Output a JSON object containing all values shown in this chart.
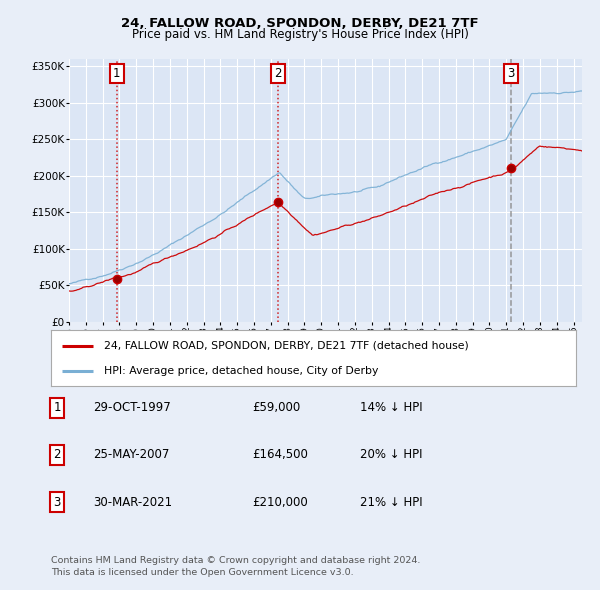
{
  "title1": "24, FALLOW ROAD, SPONDON, DERBY, DE21 7TF",
  "title2": "Price paid vs. HM Land Registry's House Price Index (HPI)",
  "red_label": "24, FALLOW ROAD, SPONDON, DERBY, DE21 7TF (detached house)",
  "blue_label": "HPI: Average price, detached house, City of Derby",
  "sale1_date": "29-OCT-1997",
  "sale1_price": 59000,
  "sale1_hpi": "14% ↓ HPI",
  "sale2_date": "25-MAY-2007",
  "sale2_price": 164500,
  "sale2_hpi": "20% ↓ HPI",
  "sale3_date": "30-MAR-2021",
  "sale3_price": 210000,
  "sale3_hpi": "21% ↓ HPI",
  "footer1": "Contains HM Land Registry data © Crown copyright and database right 2024.",
  "footer2": "This data is licensed under the Open Government Licence v3.0.",
  "background_color": "#e8eef8",
  "plot_bg_color": "#dce6f5",
  "grid_color": "#ffffff",
  "red_color": "#cc0000",
  "blue_color": "#7aafd4",
  "sale1_x": 1997.83,
  "sale2_x": 2007.4,
  "sale3_x": 2021.25,
  "ylim_min": 0,
  "ylim_max": 360000,
  "xlim_min": 1995.0,
  "xlim_max": 2025.5
}
